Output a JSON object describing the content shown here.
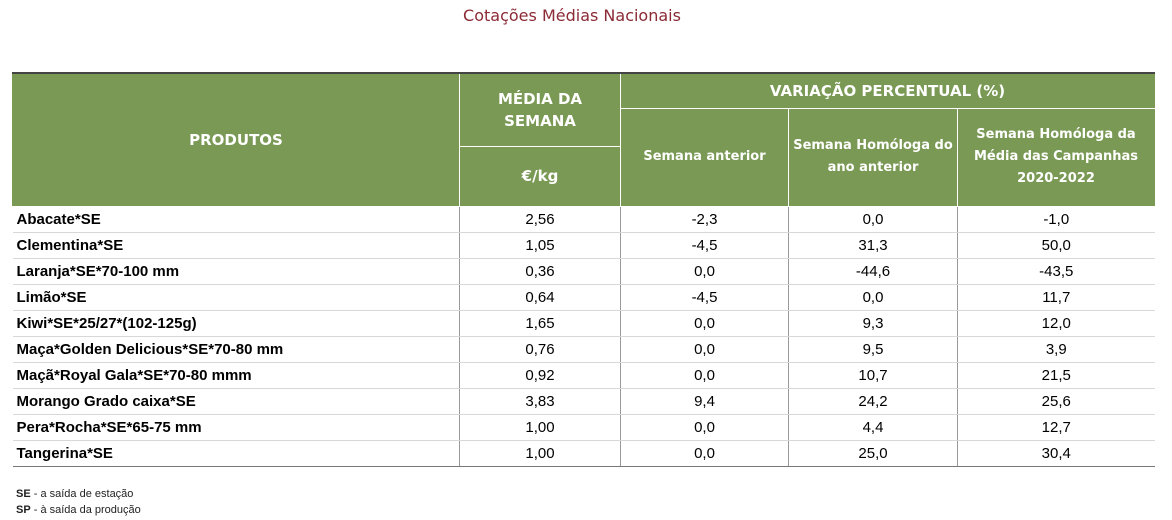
{
  "title": "Cotações Médias Nacionais",
  "headers": {
    "produtos": "PRODUTOS",
    "media": "MÉDIA DA SEMANA",
    "unit": "€/kg",
    "variacao": "VARIAÇÃO PERCENTUAL (%)",
    "semana_anterior": "Semana anterior",
    "semana_homologa": "Semana Homóloga do ano anterior",
    "semana_homologa_media": "Semana Homóloga da Média das Campanhas 2020-2022"
  },
  "rows": [
    {
      "produto": "Abacate*SE",
      "media": "2,56",
      "anterior": "-2,3",
      "homologa": "0,0",
      "campanhas": "-1,0"
    },
    {
      "produto": "Clementina*SE",
      "media": "1,05",
      "anterior": "-4,5",
      "homologa": "31,3",
      "campanhas": "50,0"
    },
    {
      "produto": "Laranja*SE*70-100 mm",
      "media": "0,36",
      "anterior": "0,0",
      "homologa": "-44,6",
      "campanhas": "-43,5"
    },
    {
      "produto": "Limão*SE",
      "media": "0,64",
      "anterior": "-4,5",
      "homologa": "0,0",
      "campanhas": "11,7"
    },
    {
      "produto": "Kiwi*SE*25/27*(102-125g)",
      "media": "1,65",
      "anterior": "0,0",
      "homologa": "9,3",
      "campanhas": "12,0"
    },
    {
      "produto": "Maça*Golden Delicious*SE*70-80 mm",
      "media": "0,76",
      "anterior": "0,0",
      "homologa": "9,5",
      "campanhas": "3,9"
    },
    {
      "produto": "Maçã*Royal Gala*SE*70-80 mmm",
      "media": "0,92",
      "anterior": "0,0",
      "homologa": "10,7",
      "campanhas": "21,5"
    },
    {
      "produto": "Morango Grado caixa*SE",
      "media": "3,83",
      "anterior": "9,4",
      "homologa": "24,2",
      "campanhas": "25,6"
    },
    {
      "produto": "Pera*Rocha*SE*65-75 mm",
      "media": "1,00",
      "anterior": "0,0",
      "homologa": "4,4",
      "campanhas": "12,7"
    },
    {
      "produto": "Tangerina*SE",
      "media": "1,00",
      "anterior": "0,0",
      "homologa": "25,0",
      "campanhas": "30,4"
    }
  ],
  "notes": [
    {
      "abbr": "SE",
      "text": " - a saída de estação"
    },
    {
      "abbr": "SP",
      "text": " - à saída da produção"
    }
  ]
}
